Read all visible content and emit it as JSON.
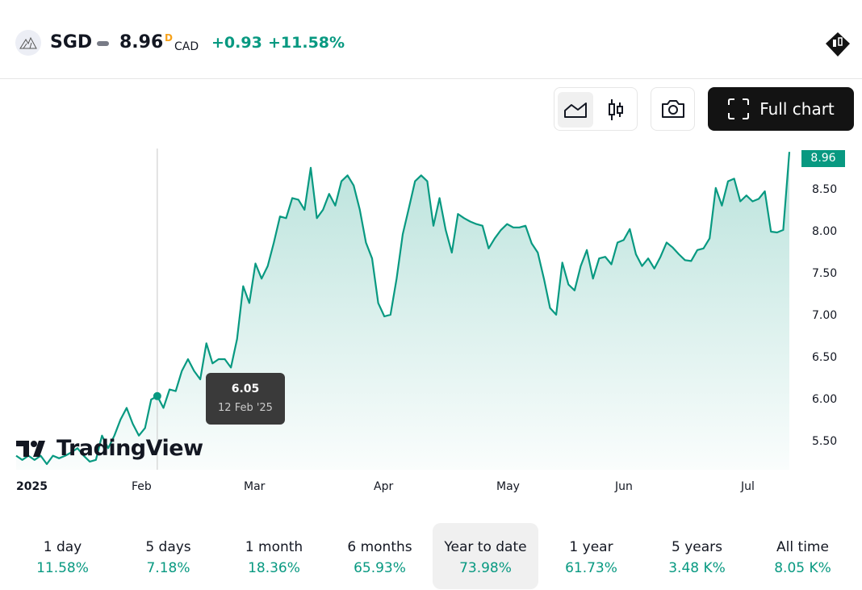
{
  "header": {
    "symbol": "SGD",
    "price": "8.96",
    "price_flag": "D",
    "currency": "CAD",
    "change": "+0.93",
    "change_percent": "+11.58%"
  },
  "toolbar": {
    "line_chart": "line-chart",
    "candles": "candlestick",
    "snapshot": "camera",
    "full_chart_label": "Full chart"
  },
  "colors": {
    "accent": "#089981",
    "dark": "#131313"
  },
  "tooltip": {
    "value": "6.05",
    "date": "12 Feb '25"
  },
  "watermark": "TradingView",
  "chart_data": {
    "type": "area",
    "title": "SGD",
    "ylim": [
      5.2,
      9.0
    ],
    "y_ticks": [
      "5.50",
      "6.00",
      "6.50",
      "7.00",
      "7.50",
      "8.00",
      "8.50"
    ],
    "y_tick_values": [
      5.5,
      6.0,
      6.5,
      7.0,
      7.5,
      8.0,
      8.5
    ],
    "x_ticks": [
      "2025",
      "Feb",
      "Mar",
      "Apr",
      "May",
      "Jun",
      "Jul"
    ],
    "last_value": "8.96",
    "highlight_index": 23,
    "values": [
      5.34,
      5.29,
      5.34,
      5.29,
      5.34,
      5.24,
      5.34,
      5.31,
      5.34,
      5.38,
      5.43,
      5.34,
      5.27,
      5.29,
      5.58,
      5.43,
      5.58,
      5.77,
      5.91,
      5.72,
      5.58,
      5.67,
      6.01,
      6.05,
      5.91,
      6.13,
      6.11,
      6.35,
      6.49,
      6.35,
      6.25,
      6.68,
      6.44,
      6.49,
      6.49,
      6.39,
      6.73,
      7.36,
      7.16,
      7.63,
      7.45,
      7.6,
      7.88,
      8.19,
      8.17,
      8.41,
      8.39,
      8.27,
      8.77,
      8.17,
      8.27,
      8.46,
      8.32,
      8.61,
      8.68,
      8.56,
      8.27,
      7.88,
      7.69,
      7.16,
      7.0,
      7.02,
      7.45,
      7.98,
      8.29,
      8.61,
      8.68,
      8.61,
      8.08,
      8.41,
      8.03,
      7.76,
      8.22,
      8.17,
      8.13,
      8.1,
      8.08,
      7.81,
      7.93,
      8.03,
      8.1,
      8.06,
      8.06,
      8.08,
      7.87,
      7.76,
      7.45,
      7.1,
      7.02,
      7.64,
      7.38,
      7.31,
      7.6,
      7.79,
      7.45,
      7.69,
      7.71,
      7.62,
      7.88,
      7.91,
      8.04,
      7.74,
      7.6,
      7.69,
      7.57,
      7.71,
      7.88,
      7.82,
      7.74,
      7.67,
      7.66,
      7.79,
      7.81,
      7.93,
      8.53,
      8.32,
      8.61,
      8.64,
      8.37,
      8.44,
      8.37,
      8.4,
      8.49,
      8.01,
      8.0,
      8.03,
      8.96
    ]
  },
  "periods": [
    {
      "label": "1 day",
      "value": "11.58%"
    },
    {
      "label": "5 days",
      "value": "7.18%"
    },
    {
      "label": "1 month",
      "value": "18.36%"
    },
    {
      "label": "6 months",
      "value": "65.93%"
    },
    {
      "label": "Year to date",
      "value": "73.98%"
    },
    {
      "label": "1 year",
      "value": "61.73%"
    },
    {
      "label": "5 years",
      "value": "3.48 K%"
    },
    {
      "label": "All time",
      "value": "8.05 K%"
    }
  ]
}
